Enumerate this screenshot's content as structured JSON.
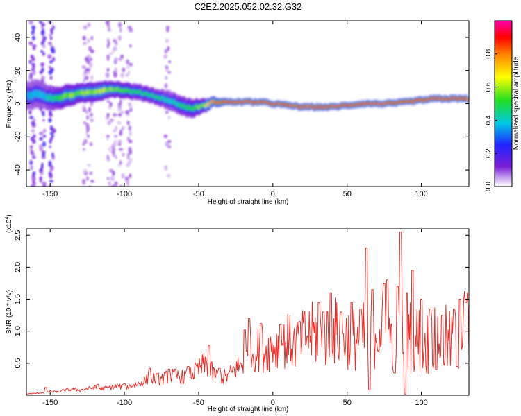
{
  "title": "C2E2.2025.052.02.32.G32",
  "chart_data": [
    {
      "type": "heatmap",
      "xlabel": "Height of straight line (km)",
      "ylabel": "Frequency (Hz)",
      "xlim": [
        -166,
        132
      ],
      "ylim": [
        -50,
        50
      ],
      "x_ticks": [
        -150,
        -100,
        -50,
        0,
        50,
        100
      ],
      "x_tick_labels": [
        "-150",
        "-100",
        "-50",
        "0",
        "50",
        "100"
      ],
      "y_ticks": [
        -40,
        -20,
        0,
        20,
        40
      ],
      "y_tick_labels": [
        "-40",
        "-20",
        "0",
        "20",
        "40"
      ],
      "ridge": {
        "x": [
          -164,
          -158,
          -152,
          -145,
          -138,
          -130,
          -122,
          -115,
          -108,
          -100,
          -92,
          -85,
          -78,
          -70,
          -62,
          -55,
          -50,
          -45,
          -40,
          -35,
          -30,
          -20,
          -10,
          0,
          10,
          20,
          30,
          40,
          50,
          60,
          70,
          80,
          90,
          100,
          110,
          120,
          132
        ],
        "y": [
          5,
          6,
          4,
          3,
          5,
          6,
          7,
          8,
          9,
          8,
          7,
          6,
          4,
          2,
          -1,
          -3,
          -2,
          -1,
          1,
          1,
          1,
          1,
          1,
          0,
          -1,
          -2,
          -2,
          -2,
          -1,
          0,
          0,
          0,
          1,
          2,
          3,
          3,
          3
        ],
        "width": [
          9,
          9,
          8,
          7,
          7,
          6,
          6,
          6,
          5,
          5,
          5,
          5,
          5,
          6,
          6,
          6,
          5,
          4,
          3,
          2.5,
          2,
          2,
          2,
          2,
          2,
          2,
          2,
          2,
          2,
          2,
          2,
          2,
          2,
          2,
          2,
          2,
          2
        ],
        "amplitude": [
          0.35,
          0.4,
          0.4,
          0.5,
          0.55,
          0.55,
          0.55,
          0.6,
          0.55,
          0.5,
          0.45,
          0.45,
          0.45,
          0.4,
          0.45,
          0.45,
          0.55,
          0.6,
          0.8,
          0.85,
          0.9,
          0.92,
          0.95,
          0.88,
          0.85,
          0.85,
          0.88,
          0.9,
          0.85,
          0.9,
          0.95,
          0.92,
          0.9,
          0.9,
          0.88,
          0.9,
          0.9
        ]
      },
      "noise_columns_x": [
        -162,
        -155,
        -149,
        -126,
        -123,
        -110,
        -107,
        -102,
        -97,
        -71
      ],
      "colorbar": {
        "label": "Normalized spectral amplitude",
        "range": [
          0,
          1
        ],
        "ticks": [
          0.0,
          0.2,
          0.4,
          0.6,
          0.8
        ],
        "tick_labels": [
          "0.0",
          "0.2",
          "0.4",
          "0.6",
          "0.8"
        ],
        "colormap": [
          "#ffffff",
          "#7a1fd6",
          "#2222ff",
          "#00c8e6",
          "#22dd22",
          "#ffff00",
          "#ff7f00",
          "#ff0000",
          "#ff00aa"
        ]
      }
    },
    {
      "type": "line",
      "xlabel": "Height of straight line (km)",
      "ylabel": "SNR (10 * v/v)",
      "y_multiplier_base": "(x10",
      "y_multiplier_exp": "4",
      "y_multiplier_close": ")",
      "xlim": [
        -166,
        132
      ],
      "ylim": [
        0,
        2.6
      ],
      "x_ticks": [
        -150,
        -100,
        -50,
        0,
        50,
        100
      ],
      "x_tick_labels": [
        "-150",
        "-100",
        "-50",
        "0",
        "50",
        "100"
      ],
      "y_ticks": [
        0.5,
        1.0,
        1.5,
        2.0,
        2.5
      ],
      "y_tick_labels": [
        "0.5",
        "1.0",
        "1.5",
        "2.0",
        "2.5"
      ],
      "color": "#e8302a",
      "series": [
        {
          "x": [
            -166,
            -160,
            -155,
            -150,
            -145,
            -140,
            -135,
            -130,
            -125,
            -120,
            -115,
            -110,
            -105,
            -100,
            -95,
            -90,
            -85,
            -80,
            -75,
            -70,
            -65,
            -60,
            -55,
            -50,
            -45,
            -40,
            -35,
            -30,
            -25,
            -20,
            -15,
            -10,
            -5,
            0,
            5,
            10,
            15,
            20,
            25,
            30,
            35,
            40,
            45,
            50,
            55,
            60,
            65,
            70,
            75,
            80,
            85,
            90,
            95,
            100,
            105,
            110,
            115,
            120,
            125,
            130,
            132
          ],
          "y": [
            0.02,
            0.03,
            0.04,
            0.06,
            0.05,
            0.08,
            0.09,
            0.08,
            0.1,
            0.12,
            0.1,
            0.12,
            0.14,
            0.12,
            0.15,
            0.18,
            0.24,
            0.26,
            0.25,
            0.3,
            0.3,
            0.28,
            0.33,
            0.4,
            0.5,
            0.33,
            0.27,
            0.3,
            0.42,
            0.48,
            0.62,
            0.72,
            0.68,
            0.78,
            0.75,
            0.85,
            0.78,
            0.9,
            0.95,
            0.95,
            0.88,
            1.02,
            0.95,
            0.92,
            0.88,
            0.95,
            0.8,
            1.08,
            1.05,
            0.9,
            1.05,
            0.95,
            0.9,
            0.85,
            0.8,
            0.95,
            0.88,
            0.78,
            0.95,
            1.05,
            1.0
          ],
          "spikes": [
            {
              "x": -153,
              "y": 0.12
            },
            {
              "x": -118,
              "y": 0.17
            },
            {
              "x": -100,
              "y": 0.18
            },
            {
              "x": -83,
              "y": 0.42
            },
            {
              "x": -70,
              "y": 0.41
            },
            {
              "x": -57,
              "y": 0.45
            },
            {
              "x": -43,
              "y": 0.78
            },
            {
              "x": -36,
              "y": 0.42
            },
            {
              "x": -19,
              "y": 1.02
            },
            {
              "x": -16,
              "y": 1.2
            },
            {
              "x": -8,
              "y": 1.12
            },
            {
              "x": 5,
              "y": 1.1
            },
            {
              "x": 18,
              "y": 1.15
            },
            {
              "x": 31,
              "y": 1.45
            },
            {
              "x": 34,
              "y": 1.3
            },
            {
              "x": 39,
              "y": 1.6
            },
            {
              "x": 46,
              "y": 1.3
            },
            {
              "x": 53,
              "y": 1.45
            },
            {
              "x": 59,
              "y": 1.35
            },
            {
              "x": 63,
              "y": 2.3
            },
            {
              "x": 67,
              "y": 1.65
            },
            {
              "x": 75,
              "y": 1.75
            },
            {
              "x": 77,
              "y": 1.8
            },
            {
              "x": 84,
              "y": 1.7
            },
            {
              "x": 86,
              "y": 2.55
            },
            {
              "x": 90,
              "y": 1.6
            },
            {
              "x": 94,
              "y": 1.95
            },
            {
              "x": 100,
              "y": 1.5
            },
            {
              "x": 106,
              "y": 1.35
            },
            {
              "x": 114,
              "y": 1.25
            },
            {
              "x": 122,
              "y": 1.35
            },
            {
              "x": 126,
              "y": 1.5
            },
            {
              "x": 130,
              "y": 1.45
            }
          ],
          "dips": [
            {
              "x": 65,
              "y": 0.08
            },
            {
              "x": 82,
              "y": 0.35
            },
            {
              "x": 89,
              "y": 0.02
            },
            {
              "x": 110,
              "y": 0.4
            },
            {
              "x": 124,
              "y": 0.45
            }
          ]
        }
      ]
    }
  ]
}
